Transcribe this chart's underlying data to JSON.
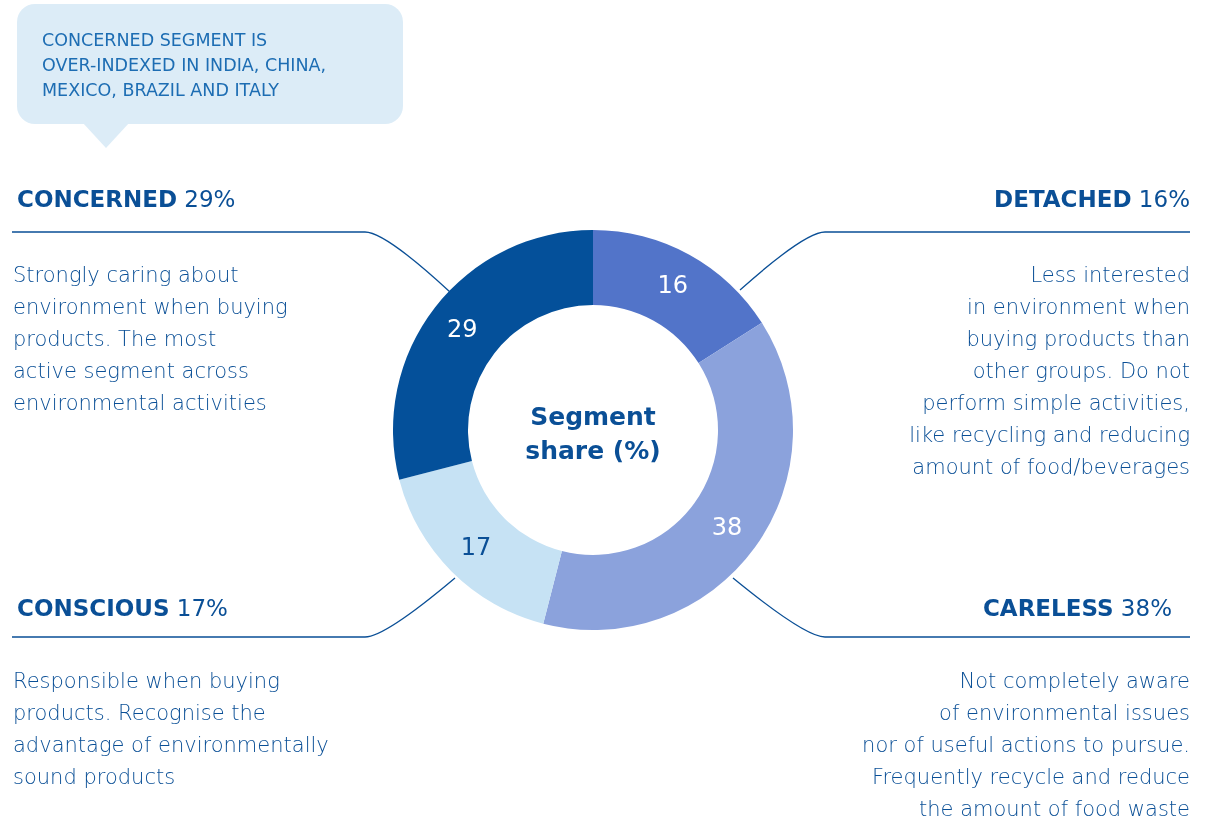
{
  "chart_data": {
    "type": "donut",
    "title": "Segment share (%)",
    "categories": [
      "DETACHED 16%",
      "CARELESS 38%",
      "CONSCIOUS 17%",
      "CONCERNED 29%"
    ],
    "values": [
      16,
      38,
      17,
      29
    ],
    "colors": [
      "#5274c9",
      "#8ba2dc",
      "#c6e2f4",
      "#04509a"
    ],
    "value_labels": [
      "16",
      "38",
      "17",
      "29"
    ],
    "legend": false,
    "annotations": [
      "CONCERNED SEGMENT IS\nOVER-INDEXED IN INDIA, CHINA,\nMEXICO, BRAZIL AND ITALY",
      "Strongly caring about\nenvironment when buying\nproducts. The most\nactive segment across\nenvironmental activities",
      "Less interested\nin environment when\nbuying products than\nother groups. Do not\nperform simple activities,\nlike recycling and reducing\namount of food/beverages",
      "Responsible when buying\nproducts. Recognise the\nadvantage of environmentally\nsound products",
      "Not completely aware\nof environmental issues\nnor of useful actions to pursue.\nFrequently recycle and reduce\nthe amount of food waste"
    ]
  }
}
